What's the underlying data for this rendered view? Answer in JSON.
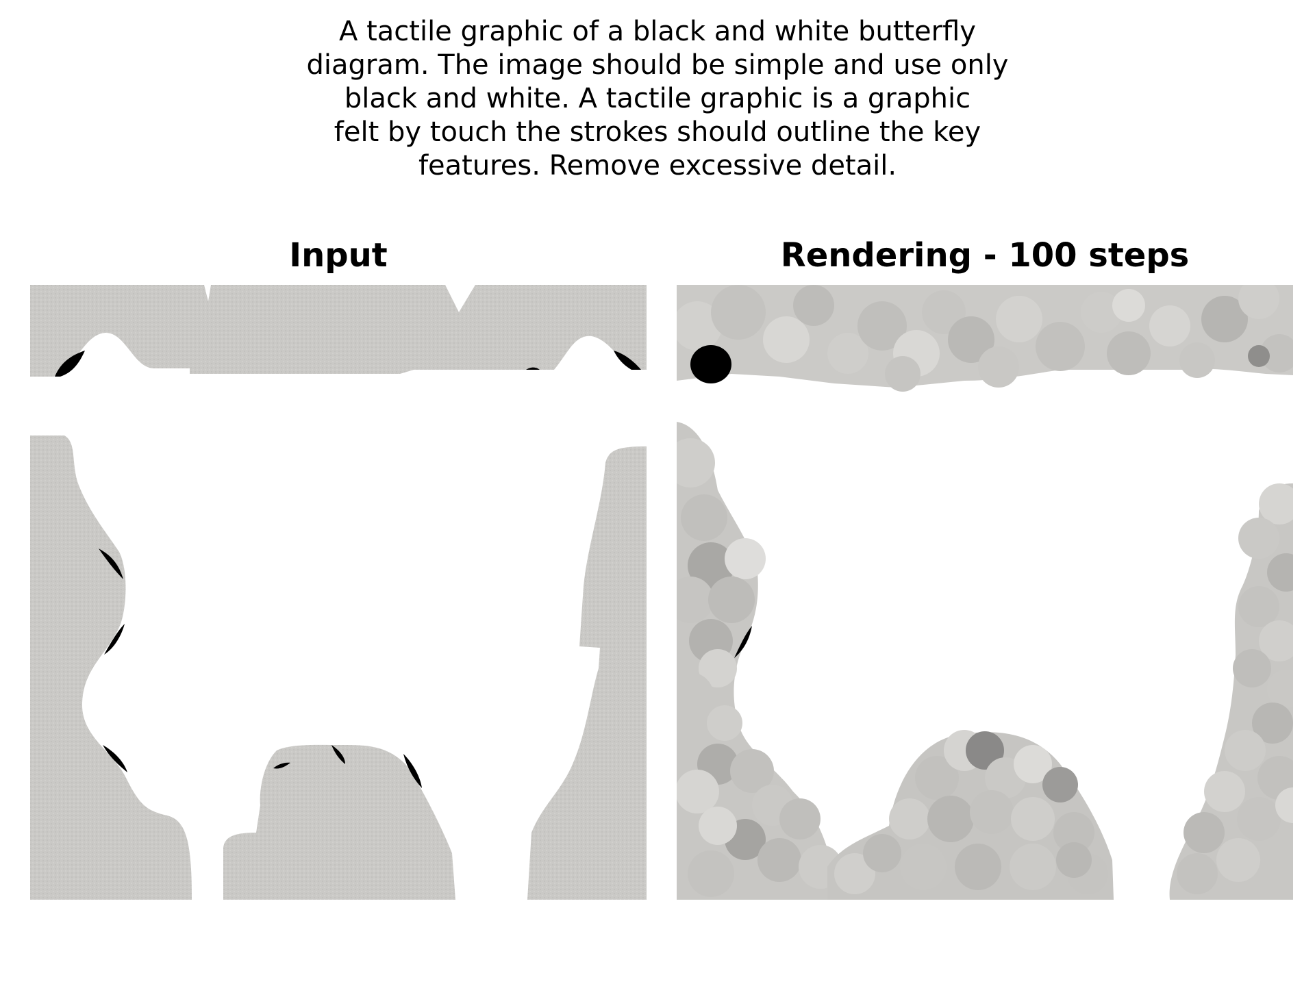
{
  "caption_lines": [
    "A tactile graphic of a black and white butterfly",
    "diagram. The image should be simple and use only",
    "black and white. A tactile graphic is a graphic",
    "felt by touch the strokes should outline the key",
    "features. Remove excessive detail."
  ],
  "panels": [
    {
      "title": "Input"
    },
    {
      "title": "Rendering - 100 steps"
    }
  ],
  "colors": {
    "background": "#ffffff",
    "texture_gray": "#c9c8c5",
    "blob_light": "#d7d6d3",
    "blob_mid": "#b9b8b5",
    "blob_dark": "#8a8988",
    "ink": "#000000"
  }
}
